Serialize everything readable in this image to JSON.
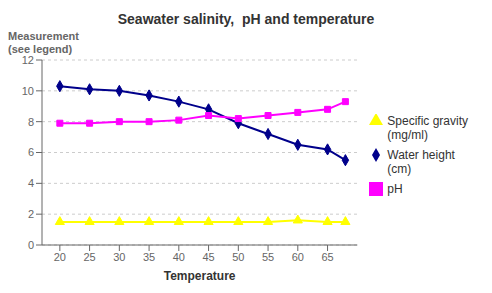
{
  "chart_data": {
    "type": "line",
    "title": "Seawater salinity,  pH and temperature",
    "x_label": "Temperature",
    "y_label": "Measurement\n(see legend)",
    "x": [
      20,
      25,
      30,
      35,
      40,
      45,
      50,
      55,
      60,
      65,
      68
    ],
    "series": [
      {
        "name": "Water height\n(cm)",
        "color": "#00008B",
        "marker": "diamond",
        "values": [
          10.3,
          10.1,
          10.0,
          9.7,
          9.3,
          8.8,
          7.9,
          7.2,
          6.5,
          6.2,
          5.5
        ]
      },
      {
        "name": "pH",
        "color": "#FF00FF",
        "marker": "square",
        "values": [
          7.9,
          7.9,
          8.0,
          8.0,
          8.1,
          8.4,
          8.2,
          8.4,
          8.6,
          8.8,
          9.3
        ]
      },
      {
        "name": "Specific gravity\n(mg/ml)",
        "color": "#FFFF00",
        "marker": "triangle",
        "values": [
          1.5,
          1.5,
          1.5,
          1.5,
          1.5,
          1.5,
          1.5,
          1.5,
          1.6,
          1.5,
          1.5
        ]
      }
    ],
    "xlim": [
      17,
      70
    ],
    "xticks": [
      20,
      25,
      30,
      35,
      40,
      45,
      50,
      55,
      60,
      65
    ],
    "ylim": [
      0,
      12
    ],
    "yticks": [
      0,
      2,
      4,
      6,
      8,
      10,
      12
    ],
    "grid": "y",
    "legend": "right"
  }
}
